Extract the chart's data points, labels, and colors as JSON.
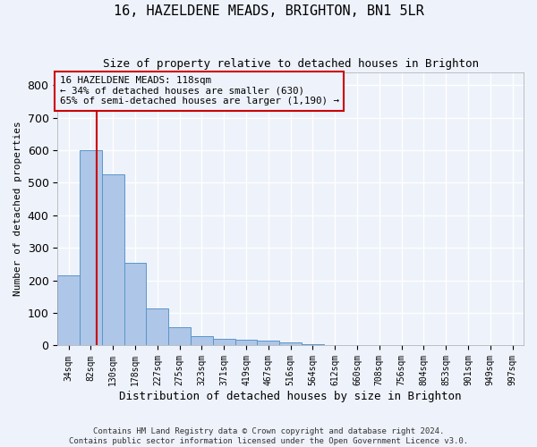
{
  "title": "16, HAZELDENE MEADS, BRIGHTON, BN1 5LR",
  "subtitle": "Size of property relative to detached houses in Brighton",
  "xlabel": "Distribution of detached houses by size in Brighton",
  "ylabel": "Number of detached properties",
  "bin_labels": [
    "34sqm",
    "82sqm",
    "130sqm",
    "178sqm",
    "227sqm",
    "275sqm",
    "323sqm",
    "371sqm",
    "419sqm",
    "467sqm",
    "516sqm",
    "564sqm",
    "612sqm",
    "660sqm",
    "708sqm",
    "756sqm",
    "804sqm",
    "853sqm",
    "901sqm",
    "949sqm",
    "997sqm"
  ],
  "bar_heights": [
    215,
    600,
    525,
    255,
    115,
    55,
    30,
    20,
    18,
    15,
    10,
    5,
    0,
    0,
    0,
    0,
    0,
    0,
    0,
    2,
    0
  ],
  "bar_color": "#aec6e8",
  "bar_edgecolor": "#5a96c8",
  "property_value": 118,
  "property_label": "16 HAZELDENE MEADS: 118sqm",
  "annotation_line1": "← 34% of detached houses are smaller (630)",
  "annotation_line2": "65% of semi-detached houses are larger (1,190) →",
  "vline_color": "#cc0000",
  "annotation_box_color": "#cc0000",
  "ylim": [
    0,
    840
  ],
  "yticks": [
    0,
    100,
    200,
    300,
    400,
    500,
    600,
    700,
    800
  ],
  "footer_line1": "Contains HM Land Registry data © Crown copyright and database right 2024.",
  "footer_line2": "Contains public sector information licensed under the Open Government Licence v3.0.",
  "background_color": "#eef2fb",
  "grid_color": "#ffffff"
}
